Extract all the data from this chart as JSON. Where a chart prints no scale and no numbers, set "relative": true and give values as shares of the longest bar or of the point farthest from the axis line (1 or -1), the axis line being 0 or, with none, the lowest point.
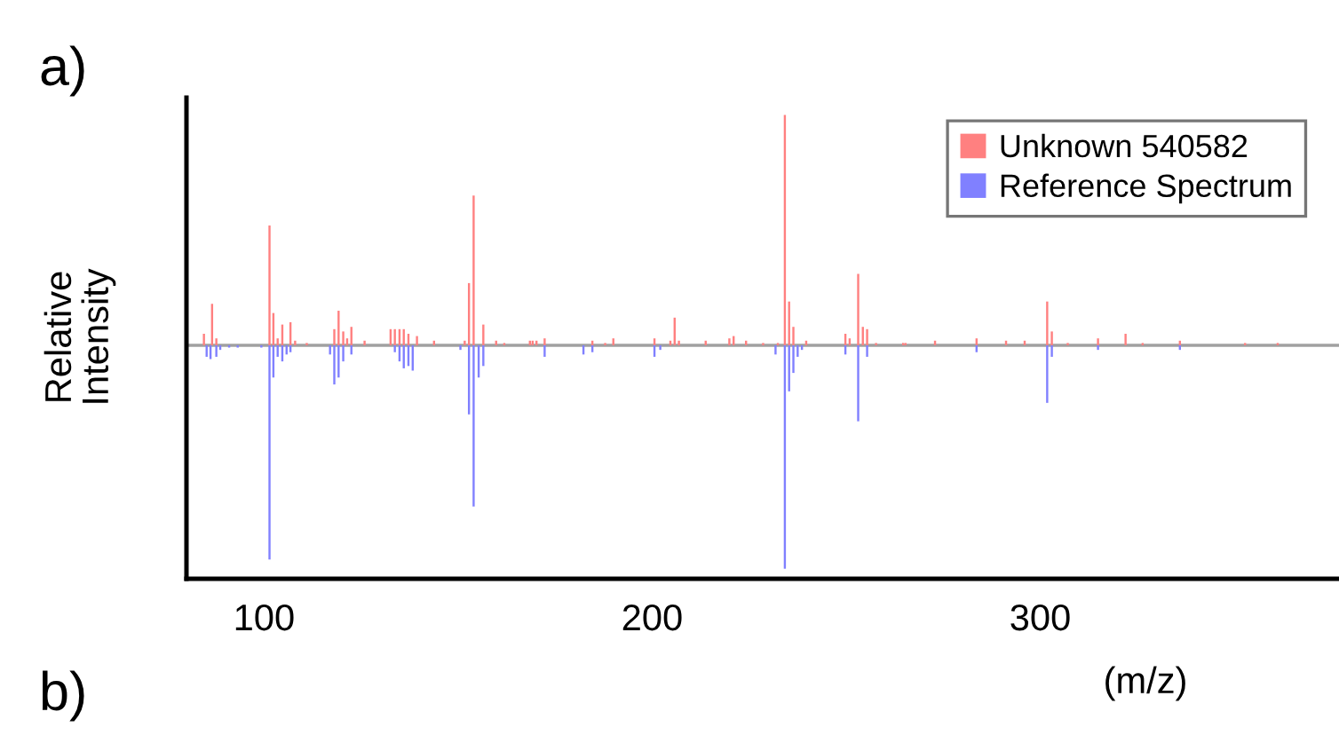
{
  "chart_data": {
    "type": "bar",
    "relative": true,
    "ylabel": "Relative\nIntensity",
    "xlabel": "(m/z)",
    "annotations": [
      "a)",
      "b)"
    ],
    "xlim": [
      80,
      377
    ],
    "xticks": [
      100,
      200,
      300
    ],
    "legend": "top right",
    "grid": false,
    "series": [
      {
        "name": "Unknown 540582",
        "color": "#ff8080",
        "x": [
          84.5,
          86.6,
          87.7,
          101.4,
          102.4,
          103.5,
          104.7,
          106.8,
          108,
          111,
          118.1,
          119.2,
          120.4,
          121.4,
          122.5,
          125.9,
          132.6,
          133.7,
          134.9,
          136,
          137.2,
          139.4,
          143.8,
          151.7,
          152.8,
          154,
          156.5,
          159.8,
          161.9,
          168.5,
          169.2,
          170.2,
          172.3,
          184.6,
          187.9,
          190,
          200.6,
          204.7,
          205.8,
          206.9,
          213.8,
          219.9,
          221,
          224.2,
          228.6,
          232.4,
          234.2,
          235.3,
          236.4,
          239.7,
          249.8,
          250.9,
          253.1,
          254.3,
          255.4,
          257.7,
          264.7,
          265.3,
          272.9,
          283.6,
          291.2,
          296,
          301.8,
          303,
          307.1,
          314.9,
          322,
          326.4,
          336,
          352.8,
          361.2
        ],
        "values": [
          0.05,
          0.18,
          0.03,
          0.52,
          0.14,
          0.03,
          0.09,
          0.1,
          0.02,
          0.01,
          0.07,
          0.15,
          0.06,
          0.03,
          0.08,
          0.02,
          0.07,
          0.07,
          0.07,
          0.07,
          0.05,
          0.04,
          0.02,
          0.02,
          0.27,
          0.65,
          0.09,
          0.02,
          0.01,
          0.02,
          0.02,
          0.02,
          0.03,
          0.02,
          0.01,
          0.03,
          0.03,
          0.02,
          0.12,
          0.02,
          0.02,
          0.03,
          0.04,
          0.02,
          0.01,
          0.01,
          1.0,
          0.19,
          0.08,
          0.02,
          0.05,
          0.03,
          0.31,
          0.08,
          0.07,
          0.01,
          0.01,
          0.01,
          0.02,
          0.03,
          0.02,
          0.02,
          0.19,
          0.06,
          0.01,
          0.03,
          0.05,
          0.01,
          0.02,
          0.01,
          0.01
        ]
      },
      {
        "name": "Reference Spectrum",
        "color": "#8080ff",
        "x": [
          85.2,
          86.2,
          87.7,
          88.7,
          91,
          93.2,
          99.3,
          101.4,
          102.4,
          103.5,
          104.7,
          105.8,
          106.8,
          117,
          118.1,
          119.2,
          120.4,
          122.5,
          133.7,
          134.9,
          136,
          137.2,
          138.3,
          150.6,
          152.8,
          154,
          155.3,
          156.5,
          172.3,
          182.3,
          184.6,
          200.6,
          202.1,
          231.8,
          234.2,
          235.3,
          236.4,
          237.5,
          238.6,
          249.8,
          253.1,
          255.4,
          283.6,
          301.8,
          303,
          314.9,
          336
        ],
        "values": [
          -0.05,
          -0.06,
          -0.05,
          -0.02,
          -0.01,
          -0.01,
          -0.01,
          -0.93,
          -0.14,
          -0.05,
          -0.07,
          -0.04,
          -0.03,
          -0.04,
          -0.17,
          -0.14,
          -0.07,
          -0.04,
          -0.03,
          -0.07,
          -0.1,
          -0.09,
          -0.11,
          -0.02,
          -0.3,
          -0.7,
          -0.14,
          -0.09,
          -0.05,
          -0.04,
          -0.03,
          -0.05,
          -0.02,
          -0.04,
          -0.97,
          -0.2,
          -0.12,
          -0.05,
          -0.02,
          -0.04,
          -0.33,
          -0.05,
          -0.03,
          -0.25,
          -0.05,
          -0.02,
          -0.02
        ]
      }
    ]
  }
}
